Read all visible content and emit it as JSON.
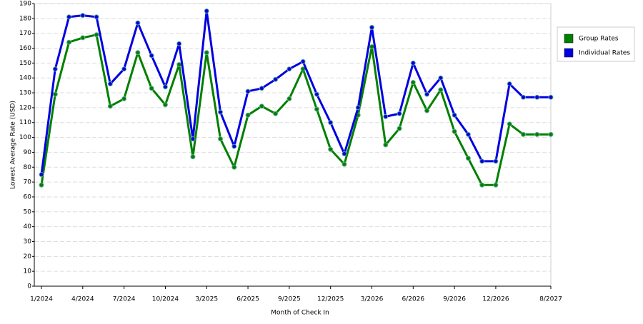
{
  "chart_data": {
    "type": "line",
    "x_label": "Month of Check In",
    "y_label": "Lowest Average Rate (USD)",
    "categories": [
      "1/2024",
      null,
      null,
      "4/2024",
      null,
      null,
      "7/2024",
      null,
      null,
      "10/2024",
      null,
      null,
      "3/2025",
      null,
      null,
      "6/2025",
      null,
      null,
      "9/2025",
      null,
      null,
      "12/2025",
      null,
      null,
      "3/2026",
      null,
      null,
      "6/2026",
      null,
      null,
      "9/2026",
      null,
      null,
      "12/2026",
      null,
      null,
      null,
      "8/2027"
    ],
    "series": [
      {
        "name": "Group Rates",
        "color": "#008000",
        "values": [
          68,
          129,
          164,
          167,
          169,
          121,
          126,
          157,
          133,
          122,
          149,
          87,
          157,
          99,
          80,
          115,
          121,
          116,
          126,
          146,
          119,
          92,
          82,
          115,
          161,
          95,
          106,
          137,
          118,
          132,
          104,
          86,
          68,
          68,
          109,
          102,
          102,
          102
        ]
      },
      {
        "name": "Individual Rates",
        "color": "#0000e0",
        "values": [
          75,
          146,
          181,
          182,
          181,
          136,
          146,
          177,
          155,
          134,
          163,
          99,
          185,
          117,
          94,
          131,
          133,
          139,
          146,
          151,
          129,
          110,
          89,
          120,
          174,
          114,
          116,
          150,
          129,
          140,
          115,
          102,
          84,
          84,
          136,
          127,
          127,
          127
        ]
      }
    ],
    "ylim": [
      0,
      190
    ],
    "yticks": [
      0,
      10,
      20,
      30,
      40,
      50,
      60,
      70,
      80,
      90,
      100,
      110,
      120,
      130,
      140,
      150,
      160,
      170,
      180,
      190
    ],
    "grid": true,
    "legend": "right"
  }
}
